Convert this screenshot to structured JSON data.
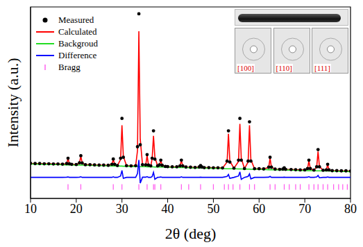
{
  "chart_data": {
    "type": "line",
    "x_label": "2θ (deg)",
    "y_label": "Intensity (a.u.)",
    "xlim": [
      10,
      80
    ],
    "xticks": [
      10,
      20,
      30,
      40,
      50,
      60,
      70,
      80
    ],
    "ylim": [
      0,
      100
    ],
    "tick_labels": "x",
    "grid": false,
    "legend": "upper left",
    "annotations": [
      "[100]",
      "[110]",
      "[111]"
    ],
    "x": [
      10,
      11,
      12,
      13,
      14,
      15,
      16,
      17,
      17.9,
      18.2,
      18.5,
      19,
      20,
      20.7,
      21.0,
      21.3,
      22,
      23,
      24,
      25,
      26,
      27,
      27.8,
      28.1,
      28.4,
      29,
      29.7,
      30.0,
      30.3,
      31,
      32,
      33,
      33.4,
      33.7,
      34.0,
      34.5,
      35.2,
      35.5,
      35.8,
      36.3,
      36.6,
      36.9,
      37.2,
      37.8,
      38.2,
      38.5,
      38.8,
      39.5,
      40,
      41,
      42,
      42.7,
      43.0,
      43.3,
      44,
      45,
      46,
      46.9,
      47.2,
      47.5,
      48,
      49,
      50,
      51,
      52,
      53.0,
      53.3,
      53.6,
      54.5,
      55.5,
      55.8,
      56.1,
      56.8,
      57.6,
      57.9,
      58.2,
      59,
      60,
      61,
      62.1,
      62.4,
      62.7,
      63.5,
      64.5,
      65.2,
      65.5,
      65.8,
      67,
      68,
      69,
      70,
      70.6,
      70.9,
      71.2,
      72,
      72.6,
      72.9,
      73.2,
      74,
      74.7,
      75.0,
      75.3,
      76,
      77,
      78,
      79,
      80
    ],
    "series": [
      {
        "name": "Measured",
        "type": "scatter",
        "marker": "circle",
        "color": "#000000",
        "values": [
          18.3,
          18.2,
          18.2,
          18.1,
          18.1,
          18.0,
          18.0,
          17.9,
          18.2,
          21.0,
          18.1,
          17.8,
          17.7,
          18.6,
          22.3,
          18.5,
          17.6,
          17.6,
          17.5,
          17.4,
          17.4,
          17.3,
          17.8,
          20.6,
          17.8,
          17.2,
          21.0,
          41.8,
          21.5,
          17.1,
          17.0,
          17.1,
          27.0,
          96.4,
          28.0,
          17.6,
          17.5,
          22.9,
          17.4,
          17.0,
          21.0,
          35.3,
          20.5,
          17.0,
          17.5,
          20.0,
          17.3,
          16.7,
          16.6,
          16.5,
          16.5,
          17.0,
          20.0,
          17.0,
          16.4,
          16.3,
          16.2,
          16.4,
          17.2,
          16.4,
          16.1,
          16.1,
          16.0,
          16.0,
          15.9,
          19.5,
          35.3,
          19.0,
          15.8,
          20.0,
          41.8,
          20.0,
          15.6,
          19.5,
          40.0,
          19.5,
          15.5,
          15.5,
          15.4,
          16.3,
          21.5,
          16.3,
          15.3,
          15.2,
          15.3,
          16.0,
          15.2,
          15.1,
          15.0,
          14.9,
          14.9,
          15.6,
          20.0,
          15.6,
          14.8,
          16.5,
          25.5,
          16.5,
          14.7,
          14.9,
          17.8,
          14.9,
          14.5,
          14.5,
          14.4,
          14.4,
          14.3
        ]
      },
      {
        "name": "Calculated",
        "type": "line",
        "line_style": "solid",
        "color": "#ff0000",
        "values": [
          18.3,
          18.2,
          18.2,
          18.1,
          18.1,
          18.0,
          18.0,
          17.9,
          18.1,
          20.8,
          18.1,
          17.8,
          17.7,
          18.5,
          22.0,
          18.5,
          17.6,
          17.6,
          17.5,
          17.4,
          17.4,
          17.3,
          17.8,
          20.3,
          17.8,
          17.2,
          20.3,
          38.2,
          22.0,
          17.1,
          17.0,
          17.1,
          25.0,
          87.3,
          31.0,
          17.5,
          17.4,
          22.5,
          17.4,
          17.0,
          20.6,
          32.7,
          21.5,
          17.0,
          17.4,
          19.8,
          17.3,
          16.7,
          16.6,
          16.5,
          16.5,
          17.0,
          19.7,
          17.0,
          16.4,
          16.3,
          16.2,
          16.4,
          17.1,
          16.4,
          16.1,
          16.1,
          16.0,
          16.0,
          15.9,
          19.0,
          33.8,
          19.5,
          15.8,
          19.3,
          38.9,
          21.0,
          15.6,
          19.0,
          38.2,
          20.3,
          15.5,
          15.5,
          15.4,
          16.2,
          21.0,
          16.3,
          15.3,
          15.2,
          15.3,
          15.9,
          15.2,
          15.1,
          15.0,
          14.9,
          14.9,
          15.5,
          19.6,
          15.6,
          14.8,
          16.3,
          24.5,
          16.7,
          14.7,
          14.9,
          17.6,
          14.9,
          14.5,
          14.5,
          14.4,
          14.4,
          14.3
        ]
      },
      {
        "name": "Backgroud",
        "type": "line",
        "line_style": "solid",
        "color": "#22dd22",
        "values": [
          18.0,
          17.9,
          17.9,
          17.8,
          17.8,
          17.7,
          17.7,
          17.6,
          17.5,
          17.5,
          17.5,
          17.5,
          17.4,
          17.4,
          17.4,
          17.4,
          17.3,
          17.3,
          17.2,
          17.1,
          17.1,
          17.0,
          17.0,
          17.0,
          17.0,
          16.9,
          16.9,
          16.9,
          16.8,
          16.8,
          16.7,
          16.7,
          16.7,
          16.6,
          16.6,
          16.6,
          16.6,
          16.5,
          16.5,
          16.5,
          16.5,
          16.5,
          16.4,
          16.4,
          16.4,
          16.4,
          16.4,
          16.3,
          16.3,
          16.2,
          16.2,
          16.1,
          16.1,
          16.1,
          16.1,
          16.0,
          15.9,
          15.9,
          15.9,
          15.9,
          15.8,
          15.8,
          15.7,
          15.7,
          15.6,
          15.5,
          15.5,
          15.5,
          15.5,
          15.4,
          15.4,
          15.4,
          15.3,
          15.3,
          15.3,
          15.2,
          15.2,
          15.2,
          15.1,
          15.0,
          15.0,
          15.0,
          15.0,
          14.9,
          14.9,
          14.8,
          14.8,
          14.8,
          14.7,
          14.6,
          14.6,
          14.5,
          14.5,
          14.5,
          14.5,
          14.4,
          14.4,
          14.4,
          14.4,
          14.3,
          14.3,
          14.3,
          14.2,
          14.2,
          14.1,
          14.1,
          14.0
        ]
      },
      {
        "name": "Difference",
        "type": "line",
        "line_style": "solid",
        "color": "#0000ff",
        "values": [
          11,
          11,
          11,
          11,
          11,
          11,
          11,
          11,
          11.1,
          11.2,
          11,
          11,
          11,
          11.1,
          11.3,
          11,
          11,
          11,
          11,
          11,
          11,
          11,
          11,
          11.3,
          11,
          11,
          11.7,
          14.6,
          10.5,
          11,
          11,
          11,
          13.0,
          20.1,
          8.0,
          11.1,
          11.1,
          11.4,
          11,
          11,
          11.4,
          13.6,
          10.0,
          11,
          11.1,
          11.2,
          11,
          11,
          11,
          11,
          11,
          11,
          11.3,
          11,
          11,
          11,
          11,
          11,
          11.1,
          11,
          11,
          11,
          11,
          11,
          11,
          11.5,
          12.5,
          10.5,
          11,
          11.7,
          13.9,
          10.0,
          11,
          11.5,
          12.8,
          10.2,
          11,
          11,
          11,
          11.1,
          11.5,
          11,
          11,
          11,
          11,
          11.1,
          11,
          11,
          11,
          11,
          11,
          11.1,
          11.4,
          11,
          11,
          11.2,
          12.0,
          10.8,
          11,
          11,
          11.2,
          11,
          11,
          11,
          11,
          11,
          11
        ]
      }
    ],
    "bragg": {
      "name": "Bragg",
      "type": "scatter",
      "marker": "vline",
      "color": "#ff55ee",
      "y": 6,
      "x": [
        18.2,
        21.0,
        28.1,
        30.0,
        33.7,
        35.5,
        36.9,
        37.2,
        38.5,
        43.0,
        44.6,
        47.2,
        50.0,
        52.4,
        53.3,
        54.3,
        55.8,
        57.9,
        59.0,
        62.4,
        63.5,
        65.5,
        66.6,
        68.0,
        69.0,
        70.9,
        72.0,
        72.9,
        74.0,
        75.0,
        76.3,
        77.4,
        78.3,
        79.3
      ]
    }
  }
}
